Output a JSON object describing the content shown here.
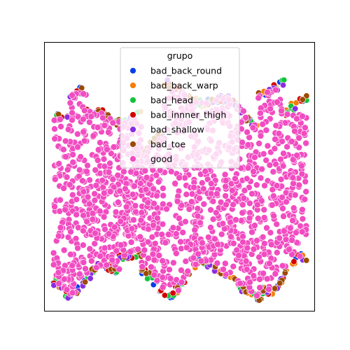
{
  "chart_data": {
    "type": "scatter",
    "title": "",
    "xlabel": "",
    "ylabel": "",
    "axis_ticks_visible": false,
    "grid": false,
    "legend": {
      "title": "grupo",
      "placement": "top-center",
      "entries": [
        {
          "name": "bad_back_round",
          "color": "#0a3de8"
        },
        {
          "name": "bad_back_warp",
          "color": "#f57c00"
        },
        {
          "name": "bad_head",
          "color": "#13c43a"
        },
        {
          "name": "bad_innner_thigh",
          "color": "#d40000"
        },
        {
          "name": "bad_shallow",
          "color": "#8b2be2"
        },
        {
          "name": "bad_toe",
          "color": "#9c4a00"
        },
        {
          "name": "good",
          "color": "#f14cc1"
        }
      ]
    },
    "series": [
      {
        "name": "bad_back_round",
        "color": "#0a3de8"
      },
      {
        "name": "bad_back_warp",
        "color": "#f57c00"
      },
      {
        "name": "bad_head",
        "color": "#13c43a"
      },
      {
        "name": "bad_innner_thigh",
        "color": "#d40000"
      },
      {
        "name": "bad_shallow",
        "color": "#8b2be2"
      },
      {
        "name": "bad_toe",
        "color": "#9c4a00"
      },
      {
        "name": "good",
        "color": "#f14cc1"
      }
    ]
  }
}
